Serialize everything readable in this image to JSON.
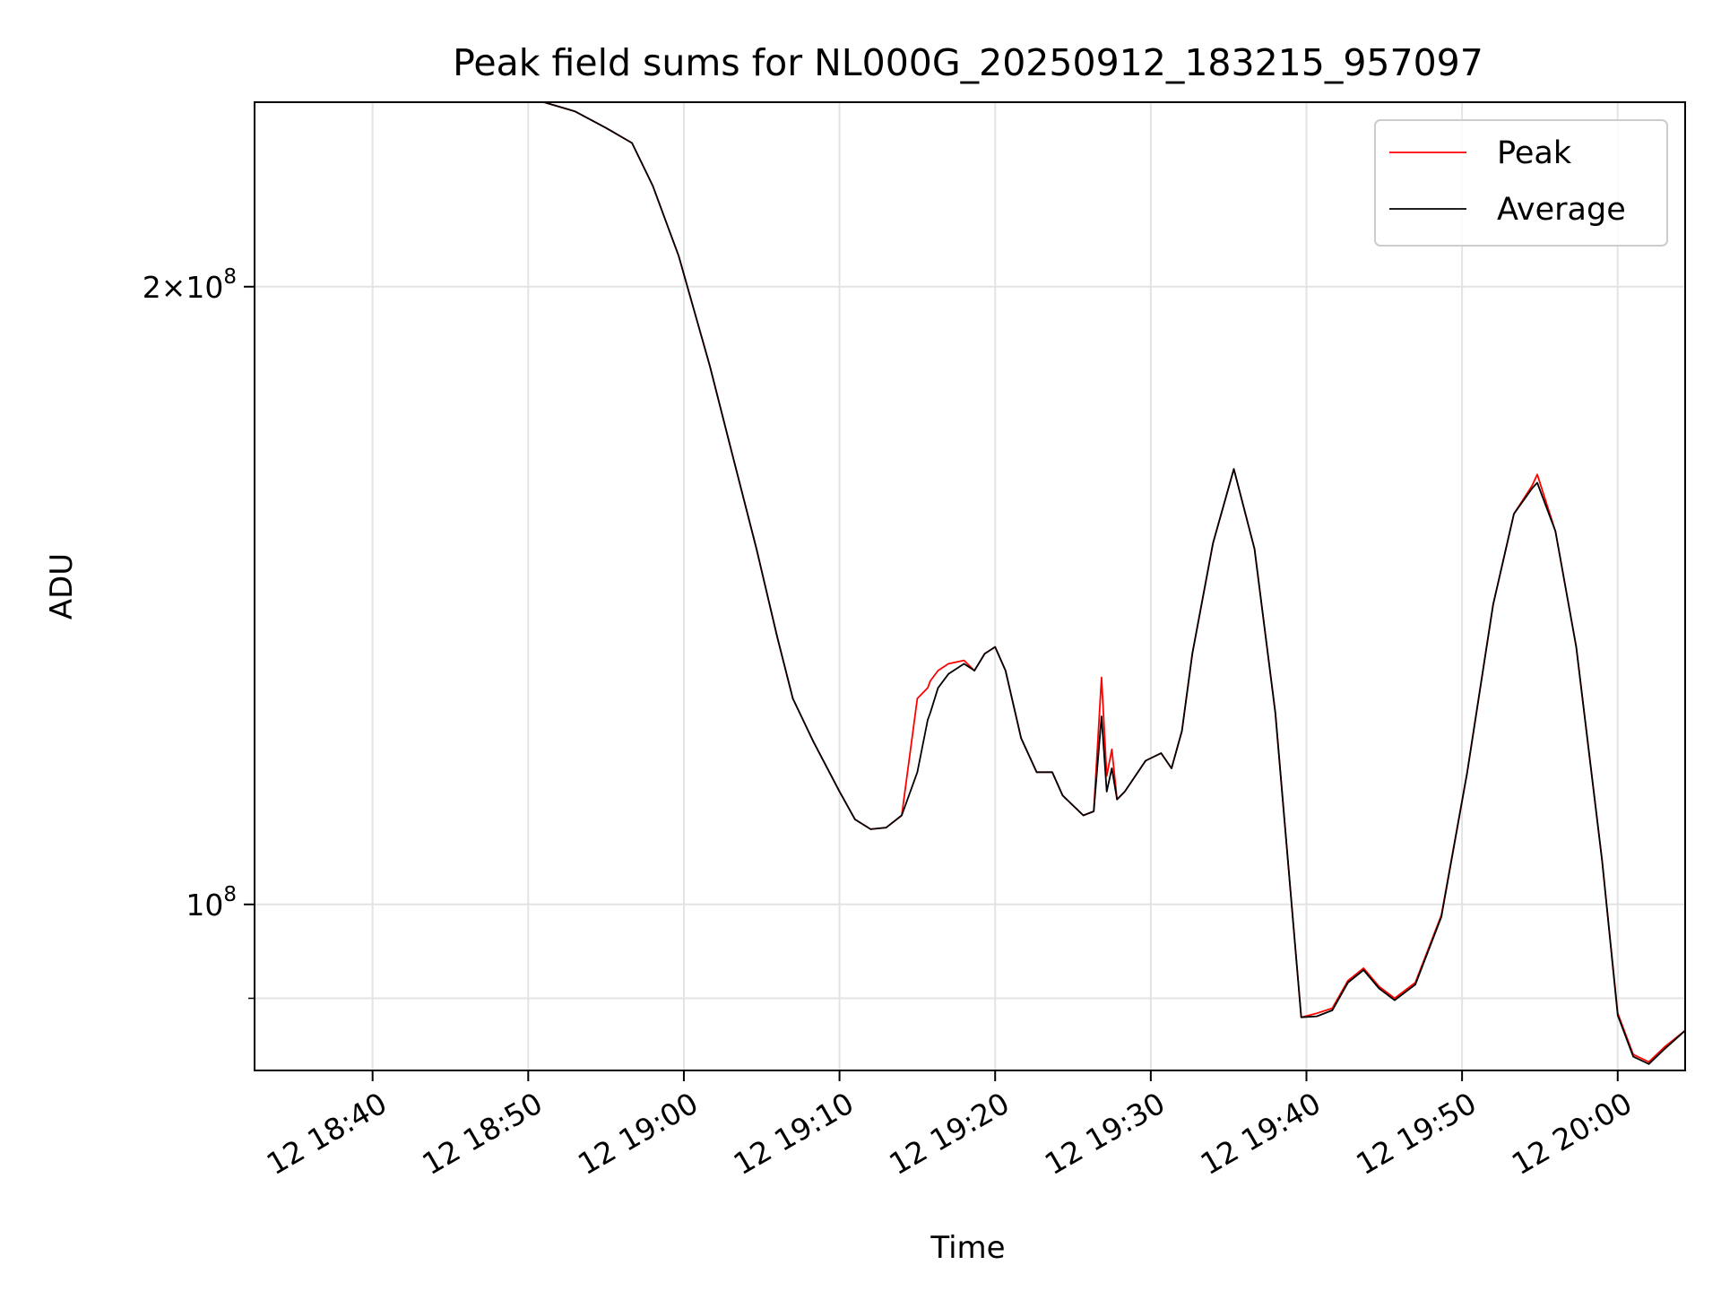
{
  "chart_data": {
    "type": "line",
    "title": "Peak field sums for NL000G_20250912_183215_957097",
    "xlabel": "Time",
    "ylabel": "ADU",
    "yscale": "log",
    "grid": true,
    "legend_position": "top-right",
    "xlim": [
      "2025-09-12 18:32:25",
      "2025-09-12 20:04:20"
    ],
    "ylim": [
      83000000,
      246000000
    ],
    "x_ticks": [
      "12 18:40",
      "12 18:50",
      "12 19:00",
      "12 19:10",
      "12 19:20",
      "12 19:30",
      "12 19:40",
      "12 19:50",
      "12 20:00"
    ],
    "y_ticks": [
      {
        "value": 100000000,
        "mantissa": "",
        "exponent": "8",
        "base": "10"
      },
      {
        "value": 200000000,
        "mantissa": "2",
        "exponent": "8",
        "base": "10"
      }
    ],
    "x": [
      "2025-09-12 18:32:15",
      "2025-09-12 18:51:00",
      "2025-09-12 18:53:00",
      "2025-09-12 18:55:00",
      "2025-09-12 18:56:40",
      "2025-09-12 18:58:00",
      "2025-09-12 18:59:40",
      "2025-09-12 19:01:40",
      "2025-09-12 19:03:00",
      "2025-09-12 19:04:40",
      "2025-09-12 19:06:00",
      "2025-09-12 19:07:00",
      "2025-09-12 19:08:20",
      "2025-09-12 19:10:00",
      "2025-09-12 19:11:00",
      "2025-09-12 19:12:00",
      "2025-09-12 19:13:00",
      "2025-09-12 19:14:00",
      "2025-09-12 19:15:00",
      "2025-09-12 19:15:40",
      "2025-09-12 19:15:50",
      "2025-09-12 19:16:20",
      "2025-09-12 19:17:00",
      "2025-09-12 19:18:00",
      "2025-09-12 19:18:40",
      "2025-09-12 19:19:20",
      "2025-09-12 19:20:00",
      "2025-09-12 19:20:40",
      "2025-09-12 19:21:40",
      "2025-09-12 19:22:40",
      "2025-09-12 19:23:40",
      "2025-09-12 19:24:20",
      "2025-09-12 19:25:40",
      "2025-09-12 19:26:20",
      "2025-09-12 19:26:50",
      "2025-09-12 19:27:10",
      "2025-09-12 19:27:30",
      "2025-09-12 19:27:50",
      "2025-09-12 19:28:20",
      "2025-09-12 19:29:40",
      "2025-09-12 19:30:40",
      "2025-09-12 19:31:20",
      "2025-09-12 19:32:00",
      "2025-09-12 19:32:40",
      "2025-09-12 19:34:00",
      "2025-09-12 19:35:20",
      "2025-09-12 19:36:40",
      "2025-09-12 19:38:00",
      "2025-09-12 19:39:40",
      "2025-09-12 19:40:40",
      "2025-09-12 19:41:40",
      "2025-09-12 19:42:40",
      "2025-09-12 19:43:40",
      "2025-09-12 19:44:40",
      "2025-09-12 19:45:40",
      "2025-09-12 19:47:00",
      "2025-09-12 19:48:40",
      "2025-09-12 19:50:20",
      "2025-09-12 19:52:00",
      "2025-09-12 19:53:20",
      "2025-09-12 19:54:30",
      "2025-09-12 19:54:50",
      "2025-09-12 19:56:00",
      "2025-09-12 19:57:20",
      "2025-09-12 19:59:00",
      "2025-09-12 20:00:00",
      "2025-09-12 20:01:00",
      "2025-09-12 20:02:00",
      "2025-09-12 20:03:00",
      "2025-09-12 20:04:20"
    ],
    "series": [
      {
        "name": "Peak",
        "color": "#ff0000",
        "values": [
          246000000,
          246000000,
          243500000,
          239000000,
          235000000,
          224000000,
          207000000,
          183000000,
          167000000,
          149000000,
          135000000,
          126000000,
          120000000,
          113500000,
          110000000,
          108800000,
          109000000,
          110500000,
          126000000,
          127500000,
          128500000,
          130000000,
          131000000,
          131500000,
          130000000,
          132500000,
          133500000,
          130000000,
          120500000,
          116000000,
          116000000,
          113000000,
          110500000,
          111000000,
          129000000,
          115500000,
          119000000,
          112500000,
          113500000,
          117500000,
          118500000,
          116500000,
          121500000,
          132500000,
          150000000,
          163000000,
          149000000,
          124000000,
          88100000,
          88500000,
          89000000,
          91800000,
          93100000,
          91200000,
          90000000,
          91600000,
          98800000,
          116000000,
          140000000,
          155000000,
          160000000,
          162000000,
          152000000,
          133500000,
          105000000,
          88500000,
          84500000,
          83800000,
          85200000,
          86800000
        ]
      },
      {
        "name": "Average",
        "color": "#000000",
        "values": [
          246000000,
          246000000,
          243500000,
          239000000,
          235000000,
          224000000,
          207000000,
          183000000,
          167000000,
          149000000,
          135000000,
          126000000,
          120000000,
          113500000,
          110000000,
          108800000,
          109000000,
          110500000,
          116000000,
          123000000,
          124000000,
          127500000,
          129500000,
          131000000,
          130000000,
          132500000,
          133500000,
          130000000,
          120500000,
          116000000,
          116000000,
          113000000,
          110500000,
          111000000,
          123500000,
          113500000,
          116500000,
          112500000,
          113500000,
          117500000,
          118500000,
          116500000,
          121500000,
          132500000,
          150000000,
          163000000,
          149000000,
          124000000,
          88100000,
          88200000,
          88800000,
          91600000,
          92900000,
          91000000,
          89800000,
          91400000,
          98600000,
          116000000,
          140000000,
          155000000,
          159500000,
          160500000,
          152000000,
          133500000,
          105000000,
          88300000,
          84300000,
          83600000,
          85000000,
          86800000
        ]
      }
    ]
  }
}
